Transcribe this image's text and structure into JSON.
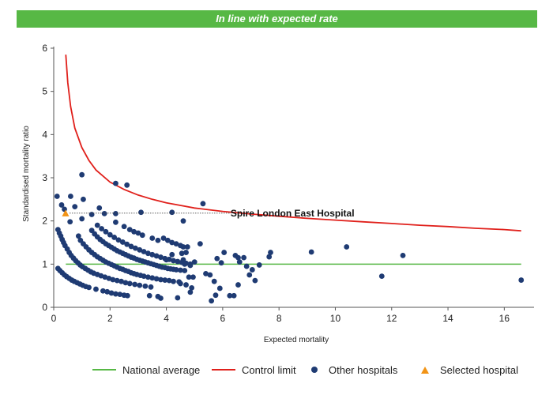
{
  "banner": {
    "title": "In line with expected rate"
  },
  "colors": {
    "banner": "#57b845",
    "national_average": "#57b845",
    "control_limit": "#e0201b",
    "other_hospitals": "#1f3b73",
    "selected_hospital": "#f29416"
  },
  "legend": {
    "national_average": "National average",
    "control_limit": "Control limit",
    "other_hospitals": "Other hospitals",
    "selected_hospital": "Selected hospital"
  },
  "chart_data": {
    "type": "scatter",
    "title": "In line with expected rate",
    "xlabel": "Expected mortality",
    "ylabel": "Standardised mortality ratio",
    "xlim": [
      0,
      17
    ],
    "ylim": [
      0,
      6
    ],
    "x_ticks": [
      0,
      2,
      4,
      6,
      8,
      10,
      12,
      14,
      16
    ],
    "y_ticks": [
      0,
      1,
      2,
      3,
      4,
      5,
      6
    ],
    "grid": false,
    "legend_position": "bottom",
    "national_average": 1,
    "control_limit": [
      [
        0.43,
        5.85
      ],
      [
        0.5,
        5.2
      ],
      [
        0.6,
        4.65
      ],
      [
        0.75,
        4.15
      ],
      [
        1.0,
        3.7
      ],
      [
        1.25,
        3.4
      ],
      [
        1.5,
        3.18
      ],
      [
        2.0,
        2.9
      ],
      [
        2.5,
        2.73
      ],
      [
        3.0,
        2.6
      ],
      [
        3.5,
        2.5
      ],
      [
        4.0,
        2.42
      ],
      [
        4.5,
        2.36
      ],
      [
        5.0,
        2.3
      ],
      [
        6.0,
        2.22
      ],
      [
        7.0,
        2.16
      ],
      [
        8.0,
        2.11
      ],
      [
        9.0,
        2.06
      ],
      [
        10.0,
        2.02
      ],
      [
        11.0,
        1.98
      ],
      [
        12.0,
        1.94
      ],
      [
        13.0,
        1.9
      ],
      [
        14.0,
        1.87
      ],
      [
        15.0,
        1.83
      ],
      [
        16.0,
        1.8
      ],
      [
        16.6,
        1.77
      ]
    ],
    "annotation": {
      "label": "Spire London East Hospital",
      "x": 0.42,
      "y": 2.18
    },
    "selected_hospital": [
      [
        0.42,
        2.18
      ]
    ],
    "other_hospitals": [
      [
        0.12,
        2.57
      ],
      [
        0.28,
        2.37
      ],
      [
        0.38,
        2.27
      ],
      [
        0.6,
        2.57
      ],
      [
        0.58,
        1.98
      ],
      [
        0.75,
        2.33
      ],
      [
        1.0,
        3.07
      ],
      [
        1.05,
        2.5
      ],
      [
        1.0,
        2.05
      ],
      [
        1.35,
        2.15
      ],
      [
        1.62,
        2.3
      ],
      [
        1.8,
        2.17
      ],
      [
        2.2,
        2.87
      ],
      [
        2.6,
        2.83
      ],
      [
        2.2,
        2.17
      ],
      [
        3.1,
        2.2
      ],
      [
        4.2,
        2.2
      ],
      [
        4.6,
        2.0
      ],
      [
        5.3,
        2.4
      ],
      [
        0.15,
        1.8
      ],
      [
        0.2,
        1.72
      ],
      [
        0.25,
        1.65
      ],
      [
        0.3,
        1.57
      ],
      [
        0.35,
        1.5
      ],
      [
        0.4,
        1.43
      ],
      [
        0.48,
        1.35
      ],
      [
        0.55,
        1.27
      ],
      [
        0.62,
        1.2
      ],
      [
        0.7,
        1.14
      ],
      [
        0.78,
        1.08
      ],
      [
        0.86,
        1.03
      ],
      [
        0.94,
        0.98
      ],
      [
        1.02,
        0.94
      ],
      [
        1.12,
        0.9
      ],
      [
        1.22,
        0.86
      ],
      [
        1.32,
        0.82
      ],
      [
        1.42,
        0.79
      ],
      [
        1.55,
        0.76
      ],
      [
        1.68,
        0.73
      ],
      [
        1.82,
        0.7
      ],
      [
        1.96,
        0.67
      ],
      [
        2.1,
        0.64
      ],
      [
        2.25,
        0.62
      ],
      [
        2.4,
        0.6
      ],
      [
        2.55,
        0.57
      ],
      [
        2.7,
        0.55
      ],
      [
        2.88,
        0.53
      ],
      [
        3.05,
        0.51
      ],
      [
        3.25,
        0.49
      ],
      [
        3.45,
        0.47
      ],
      [
        0.15,
        0.9
      ],
      [
        0.22,
        0.85
      ],
      [
        0.3,
        0.8
      ],
      [
        0.38,
        0.75
      ],
      [
        0.46,
        0.71
      ],
      [
        0.55,
        0.67
      ],
      [
        0.64,
        0.63
      ],
      [
        0.73,
        0.6
      ],
      [
        0.83,
        0.57
      ],
      [
        0.93,
        0.54
      ],
      [
        1.03,
        0.51
      ],
      [
        1.14,
        0.48
      ],
      [
        1.25,
        0.46
      ],
      [
        1.5,
        0.42
      ],
      [
        1.75,
        0.38
      ],
      [
        1.9,
        0.36
      ],
      [
        2.05,
        0.33
      ],
      [
        2.2,
        0.31
      ],
      [
        2.35,
        0.3
      ],
      [
        2.5,
        0.28
      ],
      [
        2.62,
        0.27
      ],
      [
        0.88,
        1.65
      ],
      [
        0.95,
        1.55
      ],
      [
        1.05,
        1.47
      ],
      [
        1.15,
        1.4
      ],
      [
        1.25,
        1.33
      ],
      [
        1.35,
        1.27
      ],
      [
        1.45,
        1.22
      ],
      [
        1.55,
        1.17
      ],
      [
        1.65,
        1.13
      ],
      [
        1.75,
        1.09
      ],
      [
        1.85,
        1.05
      ],
      [
        1.95,
        1.02
      ],
      [
        2.05,
        0.99
      ],
      [
        2.15,
        0.96
      ],
      [
        2.25,
        0.93
      ],
      [
        2.35,
        0.9
      ],
      [
        2.45,
        0.88
      ],
      [
        2.55,
        0.85
      ],
      [
        2.65,
        0.83
      ],
      [
        2.75,
        0.8
      ],
      [
        2.85,
        0.78
      ],
      [
        2.95,
        0.76
      ],
      [
        3.08,
        0.74
      ],
      [
        3.2,
        0.72
      ],
      [
        3.35,
        0.7
      ],
      [
        3.5,
        0.68
      ],
      [
        3.65,
        0.66
      ],
      [
        3.8,
        0.64
      ],
      [
        3.95,
        0.63
      ],
      [
        4.1,
        0.62
      ],
      [
        4.25,
        0.6
      ],
      [
        4.45,
        0.59
      ],
      [
        1.35,
        1.78
      ],
      [
        1.45,
        1.7
      ],
      [
        1.55,
        1.63
      ],
      [
        1.65,
        1.57
      ],
      [
        1.75,
        1.52
      ],
      [
        1.85,
        1.47
      ],
      [
        1.95,
        1.43
      ],
      [
        2.05,
        1.39
      ],
      [
        2.15,
        1.35
      ],
      [
        2.25,
        1.31
      ],
      [
        2.35,
        1.28
      ],
      [
        2.45,
        1.25
      ],
      [
        2.55,
        1.22
      ],
      [
        2.65,
        1.19
      ],
      [
        2.75,
        1.16
      ],
      [
        2.85,
        1.14
      ],
      [
        2.95,
        1.11
      ],
      [
        3.05,
        1.09
      ],
      [
        3.15,
        1.07
      ],
      [
        3.25,
        1.05
      ],
      [
        3.35,
        1.03
      ],
      [
        3.45,
        1.01
      ],
      [
        3.55,
        0.99
      ],
      [
        3.65,
        0.97
      ],
      [
        3.75,
        0.95
      ],
      [
        3.85,
        0.93
      ],
      [
        3.95,
        0.92
      ],
      [
        4.05,
        0.9
      ],
      [
        4.15,
        0.89
      ],
      [
        4.25,
        0.88
      ],
      [
        4.35,
        0.87
      ],
      [
        4.5,
        0.86
      ],
      [
        4.65,
        0.85
      ],
      [
        1.55,
        1.9
      ],
      [
        1.7,
        1.82
      ],
      [
        1.85,
        1.75
      ],
      [
        2.0,
        1.68
      ],
      [
        2.15,
        1.62
      ],
      [
        2.3,
        1.56
      ],
      [
        2.45,
        1.51
      ],
      [
        2.6,
        1.46
      ],
      [
        2.75,
        1.41
      ],
      [
        2.9,
        1.37
      ],
      [
        3.05,
        1.33
      ],
      [
        3.2,
        1.29
      ],
      [
        3.35,
        1.25
      ],
      [
        3.5,
        1.22
      ],
      [
        3.65,
        1.19
      ],
      [
        3.8,
        1.16
      ],
      [
        3.95,
        1.13
      ],
      [
        4.1,
        1.11
      ],
      [
        4.25,
        1.08
      ],
      [
        4.4,
        1.06
      ],
      [
        4.55,
        1.04
      ],
      [
        4.7,
        1.02
      ],
      [
        4.85,
        1.0
      ],
      [
        2.2,
        1.97
      ],
      [
        2.5,
        1.87
      ],
      [
        2.7,
        1.8
      ],
      [
        2.85,
        1.75
      ],
      [
        3.0,
        1.72
      ],
      [
        3.15,
        1.67
      ],
      [
        3.5,
        1.6
      ],
      [
        3.7,
        1.55
      ],
      [
        3.9,
        1.6
      ],
      [
        4.05,
        1.55
      ],
      [
        4.2,
        1.5
      ],
      [
        4.35,
        1.47
      ],
      [
        4.5,
        1.43
      ],
      [
        4.6,
        1.4
      ],
      [
        4.75,
        1.4
      ],
      [
        4.7,
        1.27
      ],
      [
        4.55,
        1.25
      ],
      [
        4.2,
        1.22
      ],
      [
        4.0,
        1.1
      ],
      [
        4.6,
        1.1
      ],
      [
        4.65,
        1.0
      ],
      [
        4.85,
        0.97
      ],
      [
        5.0,
        1.05
      ],
      [
        4.8,
        0.7
      ],
      [
        4.95,
        0.7
      ],
      [
        4.5,
        0.55
      ],
      [
        4.7,
        0.52
      ],
      [
        4.9,
        0.45
      ],
      [
        5.2,
        1.47
      ],
      [
        3.4,
        0.27
      ],
      [
        3.7,
        0.25
      ],
      [
        3.8,
        0.21
      ],
      [
        4.4,
        0.22
      ],
      [
        4.85,
        0.35
      ],
      [
        5.4,
        0.78
      ],
      [
        5.55,
        0.75
      ],
      [
        5.7,
        0.6
      ],
      [
        5.6,
        0.15
      ],
      [
        5.75,
        0.28
      ],
      [
        5.8,
        1.13
      ],
      [
        5.95,
        1.03
      ],
      [
        6.05,
        1.27
      ],
      [
        5.9,
        0.44
      ],
      [
        6.25,
        0.27
      ],
      [
        6.4,
        0.27
      ],
      [
        6.45,
        1.2
      ],
      [
        6.55,
        1.15
      ],
      [
        6.6,
        1.05
      ],
      [
        6.75,
        1.15
      ],
      [
        6.85,
        0.95
      ],
      [
        6.55,
        0.52
      ],
      [
        6.95,
        0.75
      ],
      [
        7.05,
        0.87
      ],
      [
        7.15,
        0.62
      ],
      [
        7.3,
        0.98
      ],
      [
        7.65,
        1.17
      ],
      [
        7.7,
        1.27
      ],
      [
        9.15,
        1.28
      ],
      [
        10.4,
        1.4
      ],
      [
        11.65,
        0.72
      ],
      [
        12.4,
        1.2
      ],
      [
        16.6,
        0.63
      ]
    ]
  }
}
